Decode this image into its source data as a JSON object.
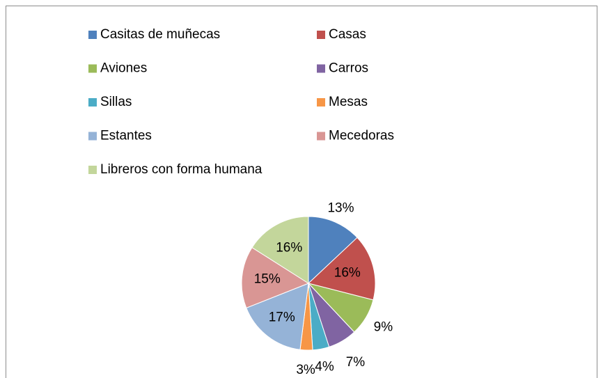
{
  "chart_data": {
    "type": "pie",
    "categories": [
      "Casitas de muñecas",
      "Casas",
      "Aviones",
      "Carros",
      "Sillas",
      "Mesas",
      "Estantes",
      "Mecedoras",
      "Libreros con forma humana"
    ],
    "values": [
      13,
      16,
      9,
      7,
      4,
      3,
      17,
      15,
      16
    ],
    "value_labels": [
      "13%",
      "16%",
      "9%",
      "7%",
      "4%",
      "3%",
      "17%",
      "15%",
      "16%"
    ],
    "colors": [
      "#4f81bd",
      "#c0504d",
      "#9bbb59",
      "#8064a2",
      "#4bacc6",
      "#f79646",
      "#95b3d7",
      "#d99694",
      "#c3d69b"
    ],
    "legend": "top"
  }
}
